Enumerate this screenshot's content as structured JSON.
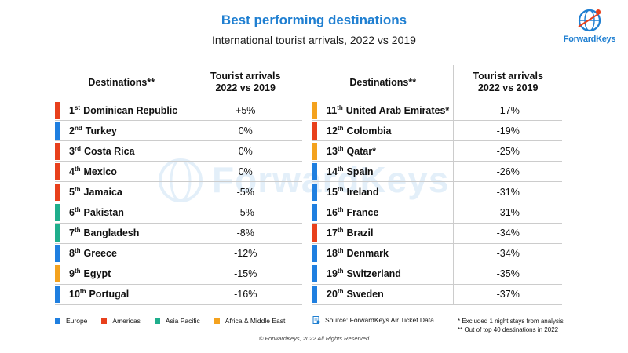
{
  "header": {
    "title": "Best performing destinations",
    "subtitle": "International tourist arrivals, 2022 vs 2019",
    "logo_text": "ForwardKeys",
    "watermark_text": "ForwardKeys"
  },
  "table_headers": {
    "destination": "Destinations**",
    "arrivals_line1": "Tourist arrivals",
    "arrivals_line2": "2022 vs 2019"
  },
  "left_rows": [
    {
      "num": "1",
      "suffix": "st",
      "name": "Dominican Republic",
      "value": "+5%",
      "region": "americas"
    },
    {
      "num": "2",
      "suffix": "nd",
      "name": "Turkey",
      "value": "0%",
      "region": "europe"
    },
    {
      "num": "3",
      "suffix": "rd",
      "name": "Costa Rica",
      "value": "0%",
      "region": "americas"
    },
    {
      "num": "4",
      "suffix": "th",
      "name": "Mexico",
      "value": "0%",
      "region": "americas"
    },
    {
      "num": "5",
      "suffix": "th",
      "name": "Jamaica",
      "value": "-5%",
      "region": "americas"
    },
    {
      "num": "6",
      "suffix": "th",
      "name": "Pakistan",
      "value": "-5%",
      "region": "asia"
    },
    {
      "num": "7",
      "suffix": "th",
      "name": "Bangladesh",
      "value": "-8%",
      "region": "asia"
    },
    {
      "num": "8",
      "suffix": "th",
      "name": "Greece",
      "value": "-12%",
      "region": "europe"
    },
    {
      "num": "9",
      "suffix": "th",
      "name": "Egypt",
      "value": "-15%",
      "region": "africa"
    },
    {
      "num": "10",
      "suffix": "th",
      "name": "Portugal",
      "value": "-16%",
      "region": "europe"
    }
  ],
  "right_rows": [
    {
      "num": "11",
      "suffix": "th",
      "name": "United Arab Emirates*",
      "value": "-17%",
      "region": "africa"
    },
    {
      "num": "12",
      "suffix": "th",
      "name": "Colombia",
      "value": "-19%",
      "region": "americas"
    },
    {
      "num": "13",
      "suffix": "th",
      "name": "Qatar*",
      "value": "-25%",
      "region": "africa"
    },
    {
      "num": "14",
      "suffix": "th",
      "name": "Spain",
      "value": "-26%",
      "region": "europe"
    },
    {
      "num": "15",
      "suffix": "th",
      "name": "Ireland",
      "value": "-31%",
      "region": "europe"
    },
    {
      "num": "16",
      "suffix": "th",
      "name": "France",
      "value": "-31%",
      "region": "europe"
    },
    {
      "num": "17",
      "suffix": "th",
      "name": "Brazil",
      "value": "-34%",
      "region": "americas"
    },
    {
      "num": "18",
      "suffix": "th",
      "name": "Denmark",
      "value": "-34%",
      "region": "europe"
    },
    {
      "num": "19",
      "suffix": "th",
      "name": "Switzerland",
      "value": "-35%",
      "region": "europe"
    },
    {
      "num": "20",
      "suffix": "th",
      "name": "Sweden",
      "value": "-37%",
      "region": "europe"
    }
  ],
  "region_colors": {
    "europe": "#1f7fe0",
    "americas": "#e8401c",
    "asia": "#1fae8c",
    "africa": "#f4a21e"
  },
  "legend": [
    {
      "label": "Europe",
      "region": "europe"
    },
    {
      "label": "Americas",
      "region": "americas"
    },
    {
      "label": "Asia Pacific",
      "region": "asia"
    },
    {
      "label": "Africa & Middle East",
      "region": "africa"
    }
  ],
  "footer": {
    "source": "Source: ForwardKeys Air Ticket Data.",
    "note1": "* Excluded 1 night stays from analysis",
    "note2": "** Out of top 40 destinations in 2022",
    "copyright": "© ForwardKeys, 2022  All Rights Reserved"
  },
  "colors": {
    "title": "#1f7fd1",
    "divider": "#cccccc"
  }
}
